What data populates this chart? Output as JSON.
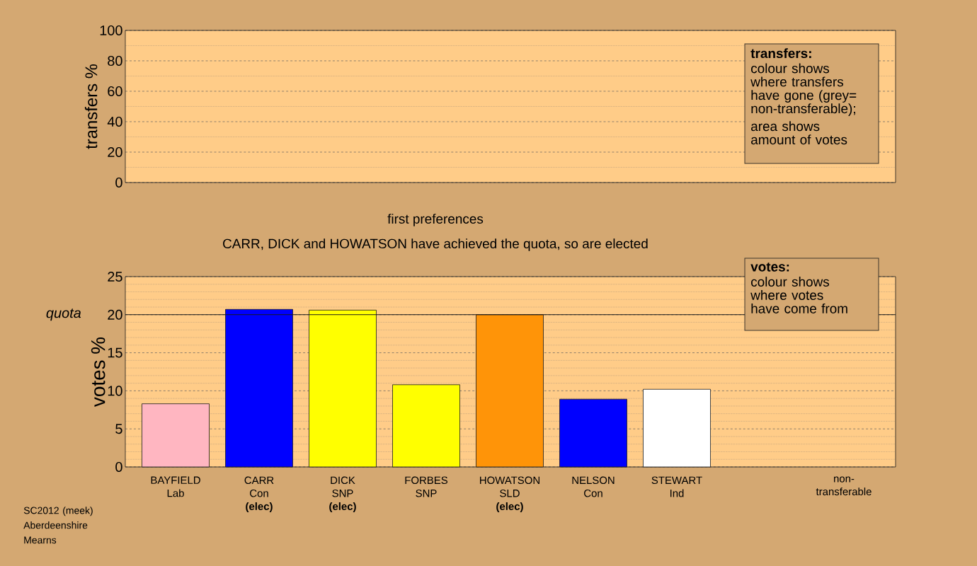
{
  "chart_data": [
    {
      "type": "bar",
      "ylabel": "transfers %",
      "categories": [
        null,
        null,
        null,
        null,
        null,
        null,
        null,
        null,
        null
      ],
      "values": [
        null,
        null,
        null,
        null,
        null,
        null,
        null,
        null,
        null
      ],
      "ylim": [
        0,
        100
      ],
      "yticks": [
        0,
        20,
        40,
        60,
        80,
        100
      ],
      "grid": "y",
      "tick_labels": "y",
      "annotations": [
        "transfers:",
        "colour shows\nwhere transfers\nhave gone (grey=\nnon-transferable);",
        "area shows\namount of votes"
      ]
    },
    {
      "type": "bar",
      "title": "first preferences",
      "subtitle": "CARR, DICK and HOWATSON have achieved the quota, so are elected",
      "ylabel": "votes %",
      "categories": [
        "BAYFIELD\nLab",
        "CARR\nCon\n**(elec)**",
        "DICK\nSNP\n**(elec)**",
        "FORBES\nSNP",
        "HOWATSON\nSLD\n**(elec)**",
        "NELSON\nCon",
        "STEWART\nInd",
        null,
        "non-transferable"
      ],
      "values": [
        8.3,
        20.7,
        20.6,
        10.8,
        20.0,
        8.9,
        10.2,
        null,
        null
      ],
      "colors": [
        "#ffb6c1",
        "#0000ff",
        "#ffff00",
        "#ffff00",
        "#ff9408",
        "#0000ff",
        "#ffffff",
        null,
        null
      ],
      "ylim": [
        0,
        25
      ],
      "yticks": [
        0,
        5,
        10,
        15,
        20,
        25
      ],
      "grid": "y",
      "ref_lines": [
        {
          "axis": "y",
          "value": 20,
          "label": "quota"
        }
      ],
      "annotations": [
        "votes:",
        "colour shows\nwhere votes\nhave come from",
        "SC2012 (meek)\nAberdeenshire\nMearns"
      ]
    }
  ]
}
